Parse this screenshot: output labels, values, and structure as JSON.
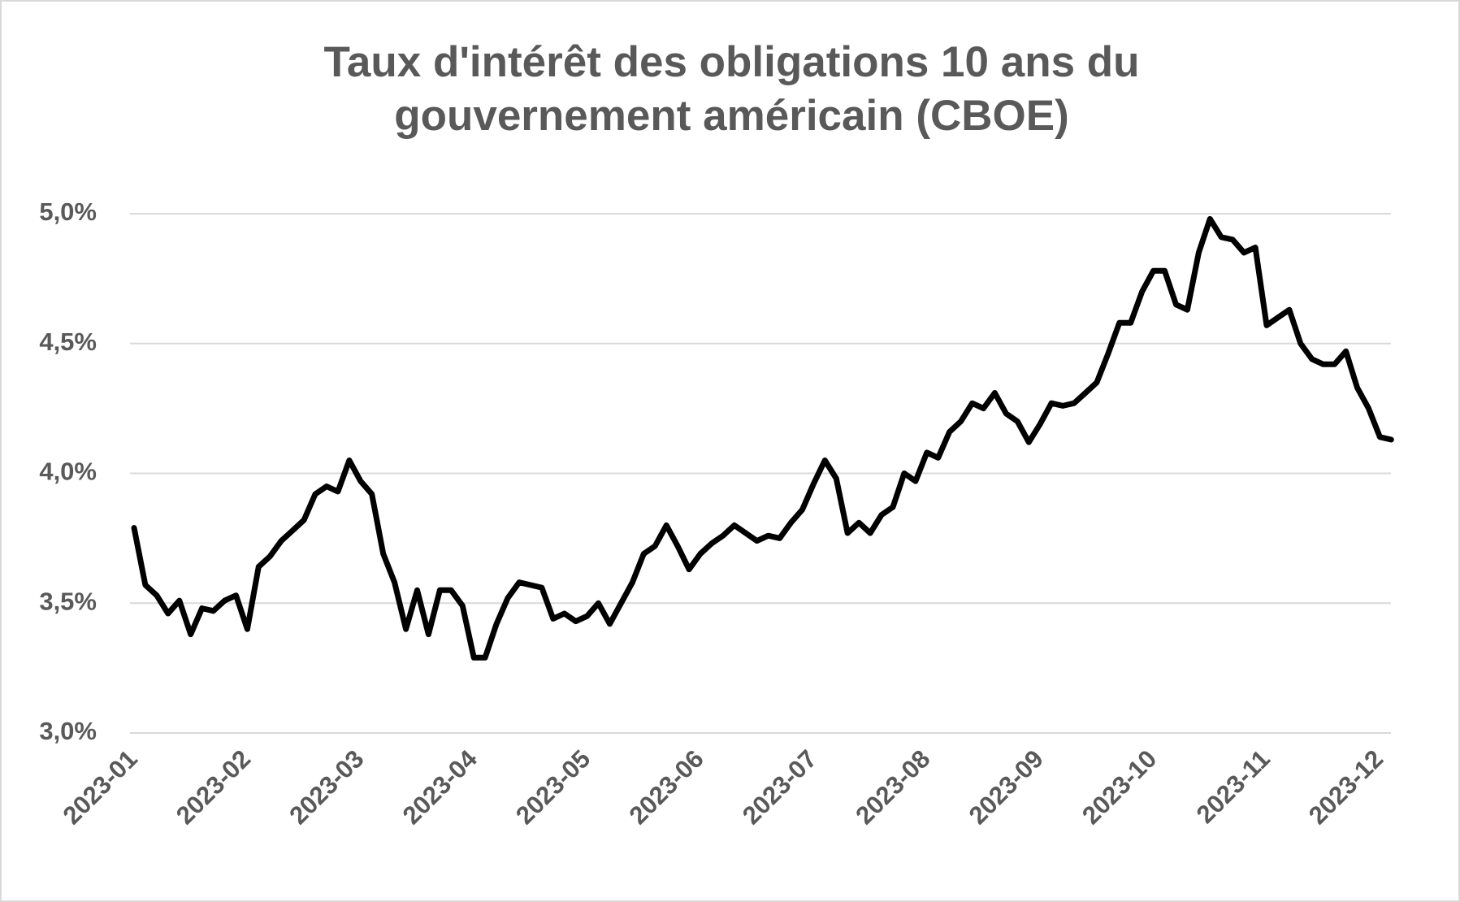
{
  "chart_data": {
    "type": "line",
    "title": "Taux d'intérêt des obligations 10 ans du gouvernement américain (CBOE)",
    "categories": [
      "2023-01",
      null,
      null,
      null,
      null,
      null,
      null,
      null,
      null,
      null,
      "2023-02",
      null,
      null,
      null,
      null,
      null,
      null,
      null,
      null,
      null,
      "2023-03",
      null,
      null,
      null,
      null,
      null,
      null,
      null,
      null,
      null,
      "2023-04",
      null,
      null,
      null,
      null,
      null,
      null,
      null,
      null,
      null,
      "2023-05",
      null,
      null,
      null,
      null,
      null,
      null,
      null,
      null,
      null,
      "2023-06",
      null,
      null,
      null,
      null,
      null,
      null,
      null,
      null,
      null,
      "2023-07",
      null,
      null,
      null,
      null,
      null,
      null,
      null,
      null,
      null,
      "2023-08",
      null,
      null,
      null,
      null,
      null,
      null,
      null,
      null,
      null,
      "2023-09",
      null,
      null,
      null,
      null,
      null,
      null,
      null,
      null,
      null,
      "2023-10",
      null,
      null,
      null,
      null,
      null,
      null,
      null,
      null,
      null,
      "2023-11",
      null,
      null,
      null,
      null,
      null,
      null,
      null,
      null,
      null,
      "2023-12",
      null
    ],
    "values": [
      3.79,
      3.57,
      3.53,
      3.46,
      3.51,
      3.38,
      3.48,
      3.47,
      3.51,
      3.53,
      3.4,
      3.64,
      3.68,
      3.74,
      3.78,
      3.82,
      3.92,
      3.95,
      3.93,
      4.05,
      3.97,
      3.92,
      3.69,
      3.58,
      3.4,
      3.55,
      3.38,
      3.55,
      3.55,
      3.49,
      3.29,
      3.29,
      3.42,
      3.52,
      3.58,
      3.57,
      3.56,
      3.44,
      3.46,
      3.43,
      3.45,
      3.5,
      3.42,
      3.5,
      3.58,
      3.69,
      3.72,
      3.8,
      3.72,
      3.63,
      3.69,
      3.73,
      3.76,
      3.8,
      3.77,
      3.74,
      3.76,
      3.75,
      3.81,
      3.86,
      3.96,
      4.05,
      3.98,
      3.77,
      3.81,
      3.77,
      3.84,
      3.87,
      4.0,
      3.97,
      4.08,
      4.06,
      4.16,
      4.2,
      4.27,
      4.25,
      4.31,
      4.23,
      4.2,
      4.12,
      4.19,
      4.27,
      4.26,
      4.27,
      4.31,
      4.35,
      4.46,
      4.58,
      4.58,
      4.7,
      4.78,
      4.78,
      4.65,
      4.63,
      4.85,
      4.98,
      4.91,
      4.9,
      4.85,
      4.87,
      4.57,
      4.6,
      4.63,
      4.5,
      4.44,
      4.42,
      4.42,
      4.47,
      4.33,
      4.25,
      4.14,
      4.13
    ],
    "color": "#000000",
    "ylim": [
      3,
      5
    ],
    "yticks": [
      {
        "value": 3,
        "label": "3,0%"
      },
      {
        "value": 3.5,
        "label": "3,5%"
      },
      {
        "value": 4,
        "label": "4,0%"
      },
      {
        "value": 4.5,
        "label": "4,5%"
      },
      {
        "value": 5,
        "label": "5,0%"
      }
    ],
    "grid": true
  }
}
